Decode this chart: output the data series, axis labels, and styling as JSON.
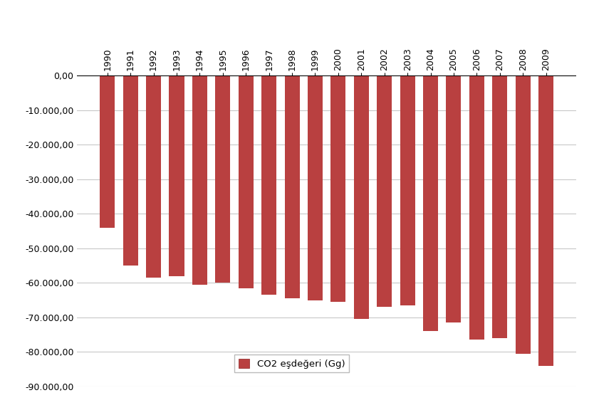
{
  "years": [
    1990,
    1991,
    1992,
    1993,
    1994,
    1995,
    1996,
    1997,
    1998,
    1999,
    2000,
    2001,
    2002,
    2003,
    2004,
    2005,
    2006,
    2007,
    2008,
    2009
  ],
  "values": [
    -44000,
    -55000,
    -58500,
    -58000,
    -60500,
    -60000,
    -61500,
    -63500,
    -64500,
    -65000,
    -65500,
    -70500,
    -67000,
    -66500,
    -74000,
    -71500,
    -76500,
    -76000,
    -80500,
    -84000
  ],
  "bar_color": "#b94040",
  "legend_label": "CO2 eşdeğeri (Gg)",
  "legend_color": "#b94040",
  "ylim": [
    -90000,
    0
  ],
  "yticks": [
    0,
    -10000,
    -20000,
    -30000,
    -40000,
    -50000,
    -60000,
    -70000,
    -80000,
    -90000
  ],
  "background_color": "#ffffff",
  "grid_color": "#c8c8c8",
  "tick_fontsize": 9,
  "bar_width": 0.65
}
